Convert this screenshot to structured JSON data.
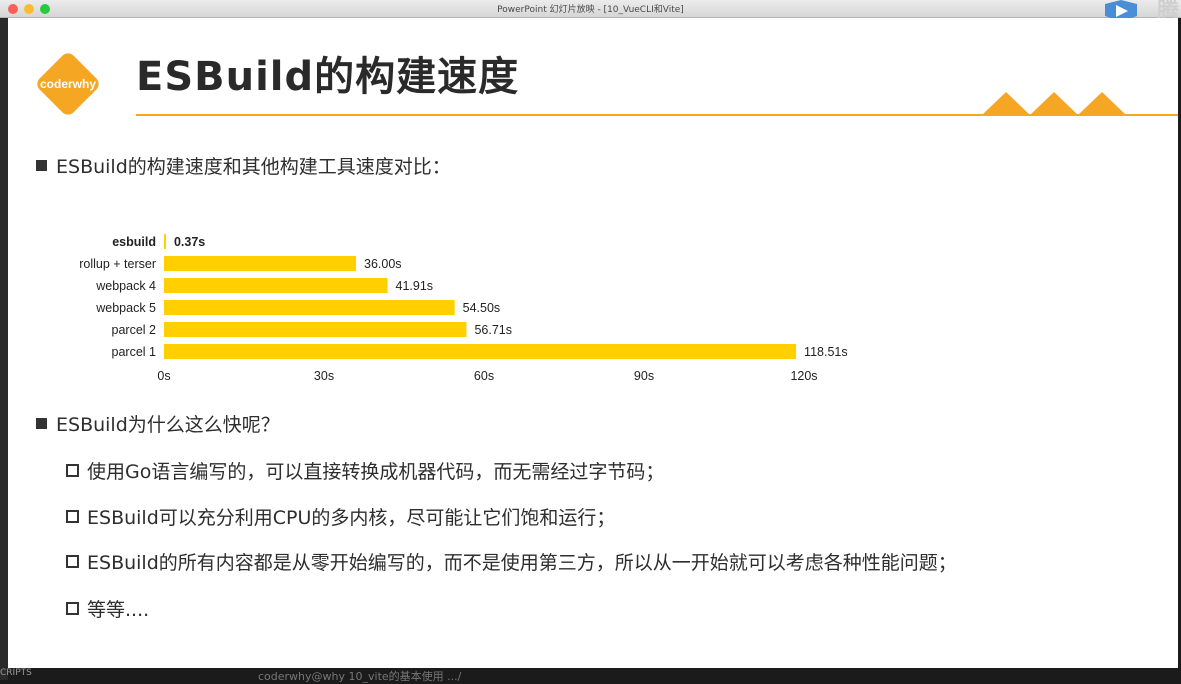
{
  "window": {
    "title": "PowerPoint 幻灯片放映 - [10_VueCLI和Vite]"
  },
  "slide": {
    "logo_text": "coderwhy",
    "title": "ESBuild的构建速度",
    "bullet1": "ESBuild的构建速度和其他构建工具速度对比：",
    "bullet2": "ESBuild为什么这么快呢？",
    "subs": [
      "使用Go语言编写的，可以直接转换成机器代码，而无需经过字节码；",
      "ESBuild可以充分利用CPU的多内核，尽可能让它们饱和运行；",
      "ESBuild的所有内容都是从零开始编写的，而不是使用第三方，所以从一开始就可以考虑各种性能问题；",
      "等等...."
    ]
  },
  "colors": {
    "accent": "#f5a623",
    "bar": "#ffcf00",
    "logo": "#f5a623"
  },
  "chart_data": {
    "type": "bar",
    "orientation": "horizontal",
    "categories": [
      "esbuild",
      "rollup + terser",
      "webpack 4",
      "webpack 5",
      "parcel 2",
      "parcel 1"
    ],
    "values": [
      0.37,
      36.0,
      41.91,
      54.5,
      56.71,
      118.51
    ],
    "value_labels": [
      "0.37s",
      "36.00s",
      "41.91s",
      "54.50s",
      "56.71s",
      "118.51s"
    ],
    "xticks": [
      "0s",
      "30s",
      "60s",
      "90s",
      "120s"
    ],
    "xlim": [
      0,
      120
    ],
    "grid": false
  },
  "icons": {
    "corner": "play-logo-icon",
    "logo": "coderwhy-logo-icon"
  },
  "bottom": {
    "overlay_text": "coderwhy@why 10_vite的基本使用 .../",
    "left_text": "CRIPTS"
  },
  "corner_char": "腾"
}
